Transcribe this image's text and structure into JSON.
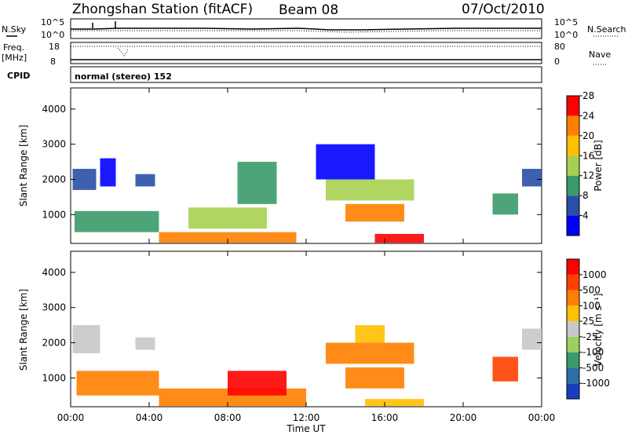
{
  "header": {
    "station": "Zhongshan Station (fitACF)",
    "beam": "Beam 08",
    "date": "07/Oct/2010"
  },
  "status_panel": {
    "nsky_label": "N.Sky",
    "nsky_ticks": [
      "10^5",
      "10^0"
    ],
    "nsearch_label": "N.Search",
    "nsearch_ticks": [
      "10^5",
      "10^0"
    ],
    "freq_label": "Freq.",
    "freq_unit": "[MHz]",
    "freq_ticks": [
      "18",
      "8"
    ],
    "nave_label": "Nave",
    "nave_ticks": [
      "80",
      "0"
    ],
    "cpid_label": "CPID",
    "cpid_text": "normal (stereo) 152"
  },
  "time_axis": {
    "label": "Time UT",
    "ticks": [
      "00:00",
      "04:00",
      "08:00",
      "12:00",
      "16:00",
      "20:00",
      "00:00"
    ]
  },
  "chart_data": [
    {
      "type": "heatmap",
      "title": "",
      "xlabel": "Time UT",
      "ylabel": "Slant Range [km]",
      "x_ticks": [
        "00:00",
        "04:00",
        "08:00",
        "12:00",
        "16:00",
        "20:00",
        "00:00"
      ],
      "xlim_hours": [
        0,
        24
      ],
      "y_ticks": [
        1000,
        2000,
        3000,
        4000
      ],
      "ylim": [
        180,
        4600
      ],
      "colorbar": {
        "label": "Power [dB]",
        "ticks": [
          "4",
          "8",
          "12",
          "16",
          "20",
          "24",
          "28"
        ],
        "colors": [
          "#0000ff",
          "#2a4fa8",
          "#3a9a6a",
          "#a8d050",
          "#ffc000",
          "#ff8000",
          "#ff0000"
        ]
      },
      "patches": [
        {
          "t0": 0.1,
          "t1": 1.3,
          "r0": 1700,
          "r1": 2300,
          "c": 1
        },
        {
          "t0": 1.5,
          "t1": 2.3,
          "r0": 1800,
          "r1": 2600,
          "c": 0
        },
        {
          "t0": 3.3,
          "t1": 4.3,
          "r0": 1800,
          "r1": 2150,
          "c": 1
        },
        {
          "t0": 0.2,
          "t1": 4.5,
          "r0": 500,
          "r1": 1100,
          "c": 2
        },
        {
          "t0": 4.5,
          "t1": 11.5,
          "r0": 200,
          "r1": 500,
          "c": 5
        },
        {
          "t0": 6.0,
          "t1": 10.0,
          "r0": 600,
          "r1": 1200,
          "c": 3
        },
        {
          "t0": 8.5,
          "t1": 10.5,
          "r0": 1300,
          "r1": 2500,
          "c": 2
        },
        {
          "t0": 13.0,
          "t1": 17.5,
          "r0": 1400,
          "r1": 2000,
          "c": 3
        },
        {
          "t0": 14.0,
          "t1": 17.0,
          "r0": 800,
          "r1": 1300,
          "c": 5
        },
        {
          "t0": 15.5,
          "t1": 18.0,
          "r0": 200,
          "r1": 450,
          "c": 6
        },
        {
          "t0": 12.5,
          "t1": 15.5,
          "r0": 2000,
          "r1": 3000,
          "c": 0
        },
        {
          "t0": 21.5,
          "t1": 22.8,
          "r0": 1000,
          "r1": 1600,
          "c": 2
        },
        {
          "t0": 23.0,
          "t1": 24.0,
          "r0": 1800,
          "r1": 2300,
          "c": 1
        }
      ]
    },
    {
      "type": "heatmap",
      "title": "",
      "xlabel": "Time UT",
      "ylabel": "Slant Range [km]",
      "x_ticks": [
        "00:00",
        "04:00",
        "08:00",
        "12:00",
        "16:00",
        "20:00",
        "00:00"
      ],
      "xlim_hours": [
        0,
        24
      ],
      "y_ticks": [
        1000,
        2000,
        3000,
        4000
      ],
      "ylim": [
        180,
        4600
      ],
      "colorbar": {
        "label": "Velocity [m s⁻¹]",
        "ticks": [
          "1000",
          "500",
          "100",
          "25",
          "-25",
          "-100",
          "-500",
          "-1000"
        ],
        "colors": [
          "#1a3cc0",
          "#2f6fa8",
          "#3a9a6a",
          "#9ccf60",
          "#c8c8c8",
          "#ffc000",
          "#ff8000",
          "#ff4000",
          "#ff0000"
        ]
      },
      "patches": [
        {
          "t0": 0.1,
          "t1": 1.5,
          "r0": 1700,
          "r1": 2500,
          "c": 4
        },
        {
          "t0": 3.3,
          "t1": 4.3,
          "r0": 1800,
          "r1": 2150,
          "c": 4
        },
        {
          "t0": 0.3,
          "t1": 4.5,
          "r0": 500,
          "r1": 1200,
          "c": 6
        },
        {
          "t0": 4.5,
          "t1": 12.0,
          "r0": 200,
          "r1": 700,
          "c": 6
        },
        {
          "t0": 8.0,
          "t1": 11.0,
          "r0": 500,
          "r1": 1200,
          "c": 8
        },
        {
          "t0": 13.0,
          "t1": 17.5,
          "r0": 1400,
          "r1": 2000,
          "c": 6
        },
        {
          "t0": 14.0,
          "t1": 17.0,
          "r0": 700,
          "r1": 1300,
          "c": 6
        },
        {
          "t0": 15.0,
          "t1": 18.0,
          "r0": 200,
          "r1": 400,
          "c": 5
        },
        {
          "t0": 14.5,
          "t1": 16.0,
          "r0": 2000,
          "r1": 2500,
          "c": 5
        },
        {
          "t0": 21.5,
          "t1": 22.8,
          "r0": 900,
          "r1": 1600,
          "c": 7
        },
        {
          "t0": 23.0,
          "t1": 24.0,
          "r0": 1800,
          "r1": 2400,
          "c": 4
        }
      ]
    }
  ]
}
